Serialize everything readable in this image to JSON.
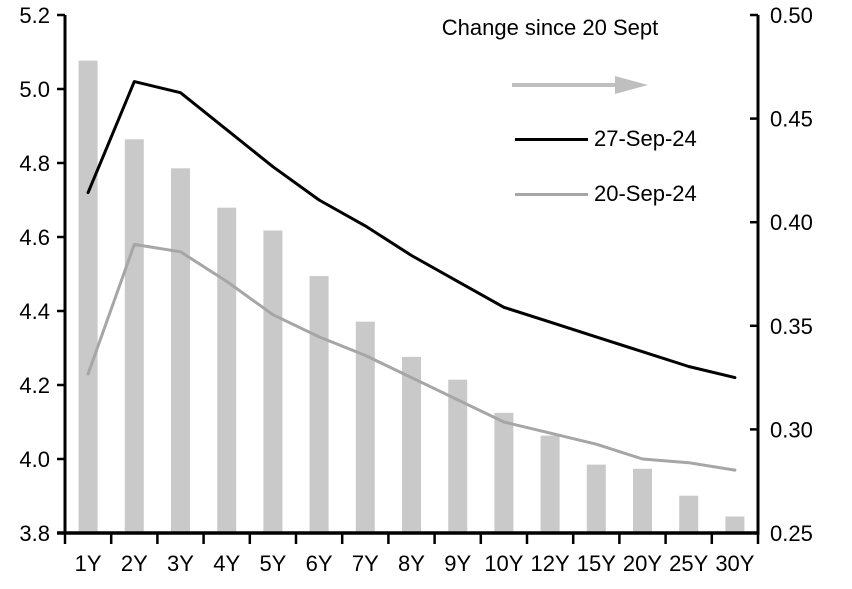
{
  "chart_data": {
    "type": "bar+line combo, dual axis",
    "categories": [
      "1Y",
      "2Y",
      "3Y",
      "4Y",
      "5Y",
      "6Y",
      "7Y",
      "8Y",
      "9Y",
      "10Y",
      "12Y",
      "15Y",
      "20Y",
      "25Y",
      "30Y"
    ],
    "series": [
      {
        "name": "Change since 20 Sept",
        "type": "bar",
        "axis": "right",
        "color": "#c9c9c9",
        "values": [
          0.478,
          0.44,
          0.426,
          0.407,
          0.396,
          0.374,
          0.352,
          0.335,
          0.324,
          0.308,
          0.297,
          0.283,
          0.281,
          0.268,
          0.258
        ]
      },
      {
        "name": "27-Sep-24",
        "type": "line",
        "axis": "left",
        "color": "#000000",
        "values": [
          4.72,
          5.02,
          4.99,
          4.89,
          4.79,
          4.7,
          4.63,
          4.55,
          4.48,
          4.41,
          4.37,
          4.33,
          4.29,
          4.25,
          4.22
        ]
      },
      {
        "name": "20-Sep-24",
        "type": "line",
        "axis": "left",
        "color": "#a6a6a6",
        "values": [
          4.23,
          4.58,
          4.56,
          4.48,
          4.39,
          4.33,
          4.28,
          4.22,
          4.16,
          4.1,
          4.07,
          4.04,
          4.0,
          3.99,
          3.97
        ]
      }
    ],
    "left_axis": {
      "min": 3.8,
      "max": 5.2,
      "tick_step": 0.2,
      "tick_labels": [
        "5.2",
        "5.0",
        "4.8",
        "4.6",
        "4.4",
        "4.2",
        "4.0",
        "3.8"
      ]
    },
    "right_axis": {
      "min": 0.25,
      "max": 0.5,
      "tick_step": 0.05,
      "tick_labels": [
        "0.50",
        "0.45",
        "0.40",
        "0.35",
        "0.30",
        "0.25"
      ]
    },
    "legend": {
      "title": "Change since 20 Sept",
      "arrow_color": "#bfbfbf",
      "entries": [
        "27-Sep-24",
        "20-Sep-24"
      ]
    },
    "grid": "off",
    "background": "#ffffff",
    "axis_color": "#000000"
  }
}
